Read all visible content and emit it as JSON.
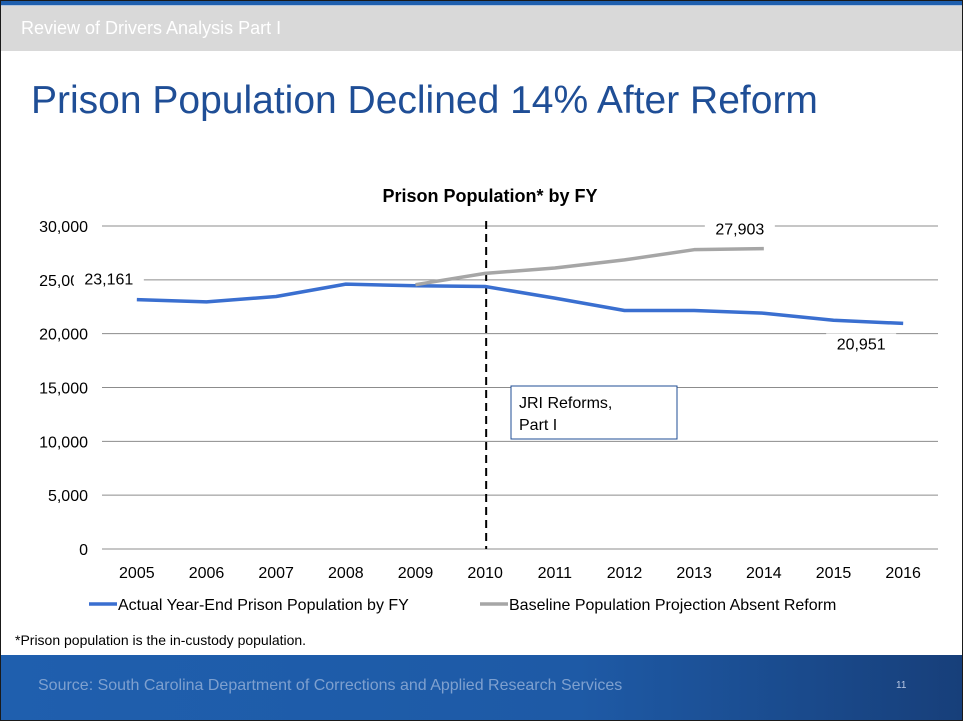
{
  "slide": {
    "header": "Review of Drivers Analysis Part I",
    "title": "Prison Population Declined 14% After Reform",
    "footnote": "*Prison population is the in-custody population.",
    "source": "Source: South Carolina Department of Corrections and Applied Research Services",
    "page_number": "11"
  },
  "colors": {
    "accent": "#1f5fae",
    "title": "#1f4e96",
    "series_actual": "#3a6fd0",
    "series_baseline": "#a6a6a6",
    "gridline": "#8c8c8c"
  },
  "chart_data": {
    "type": "line",
    "title": "Prison Population* by FY",
    "categories": [
      "2005",
      "2006",
      "2007",
      "2008",
      "2009",
      "2010",
      "2011",
      "2012",
      "2013",
      "2014",
      "2015",
      "2016"
    ],
    "series": [
      {
        "name": "Actual Year-End Prison Population by FY",
        "values": [
          23161,
          22950,
          23450,
          24600,
          24450,
          24380,
          23300,
          22150,
          22150,
          21900,
          21250,
          20951
        ]
      },
      {
        "name": "Baseline Population Projection Absent Reform",
        "values": [
          null,
          null,
          null,
          null,
          24550,
          25600,
          26100,
          26850,
          27800,
          27903,
          null,
          null
        ]
      }
    ],
    "y_ticks": [
      "0",
      "5,000",
      "10,000",
      "15,000",
      "20,000",
      "25,000",
      "30,000"
    ],
    "ylim": [
      0,
      30000
    ],
    "data_labels": [
      {
        "series": 0,
        "category": "2005",
        "text": "23,161"
      },
      {
        "series": 1,
        "category": "2014",
        "text": "27,903"
      },
      {
        "series": 0,
        "category": "2016",
        "text": "20,951"
      }
    ],
    "annotation": {
      "text_line1": "JRI Reforms,",
      "text_line2": "Part I",
      "marker_category": "2010",
      "marker_style": "dashed vertical line"
    },
    "grid": true,
    "legend_position": "bottom"
  }
}
